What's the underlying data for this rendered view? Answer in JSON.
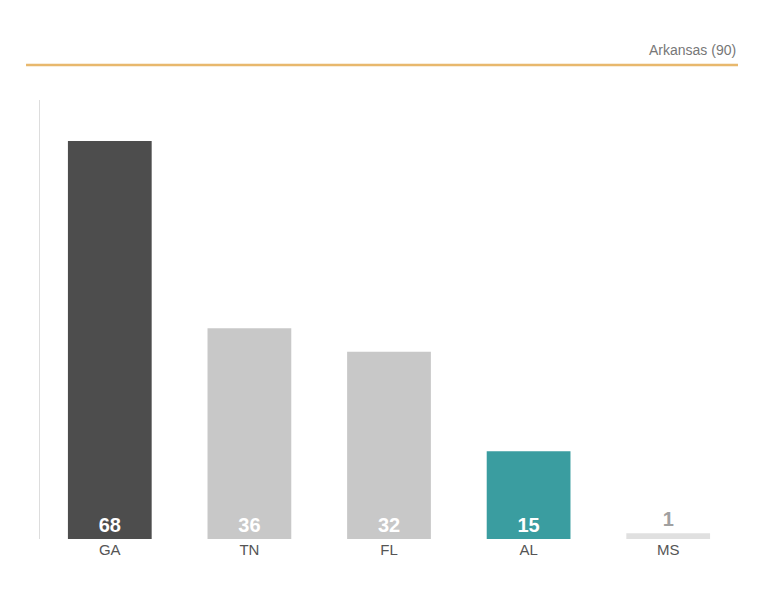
{
  "chart_data": {
    "type": "bar",
    "categories": [
      "GA",
      "TN",
      "FL",
      "AL",
      "MS"
    ],
    "values": [
      68,
      36,
      32,
      15,
      1
    ],
    "colors": [
      "#4d4d4d",
      "#c8c8c8",
      "#c8c8c8",
      "#3a9da0",
      "#e0e0e0"
    ],
    "ylim": [
      0,
      75
    ],
    "grid": false,
    "data_labels": true,
    "tick_labels": "x",
    "annotations": [
      "Arkansas (90)"
    ]
  }
}
